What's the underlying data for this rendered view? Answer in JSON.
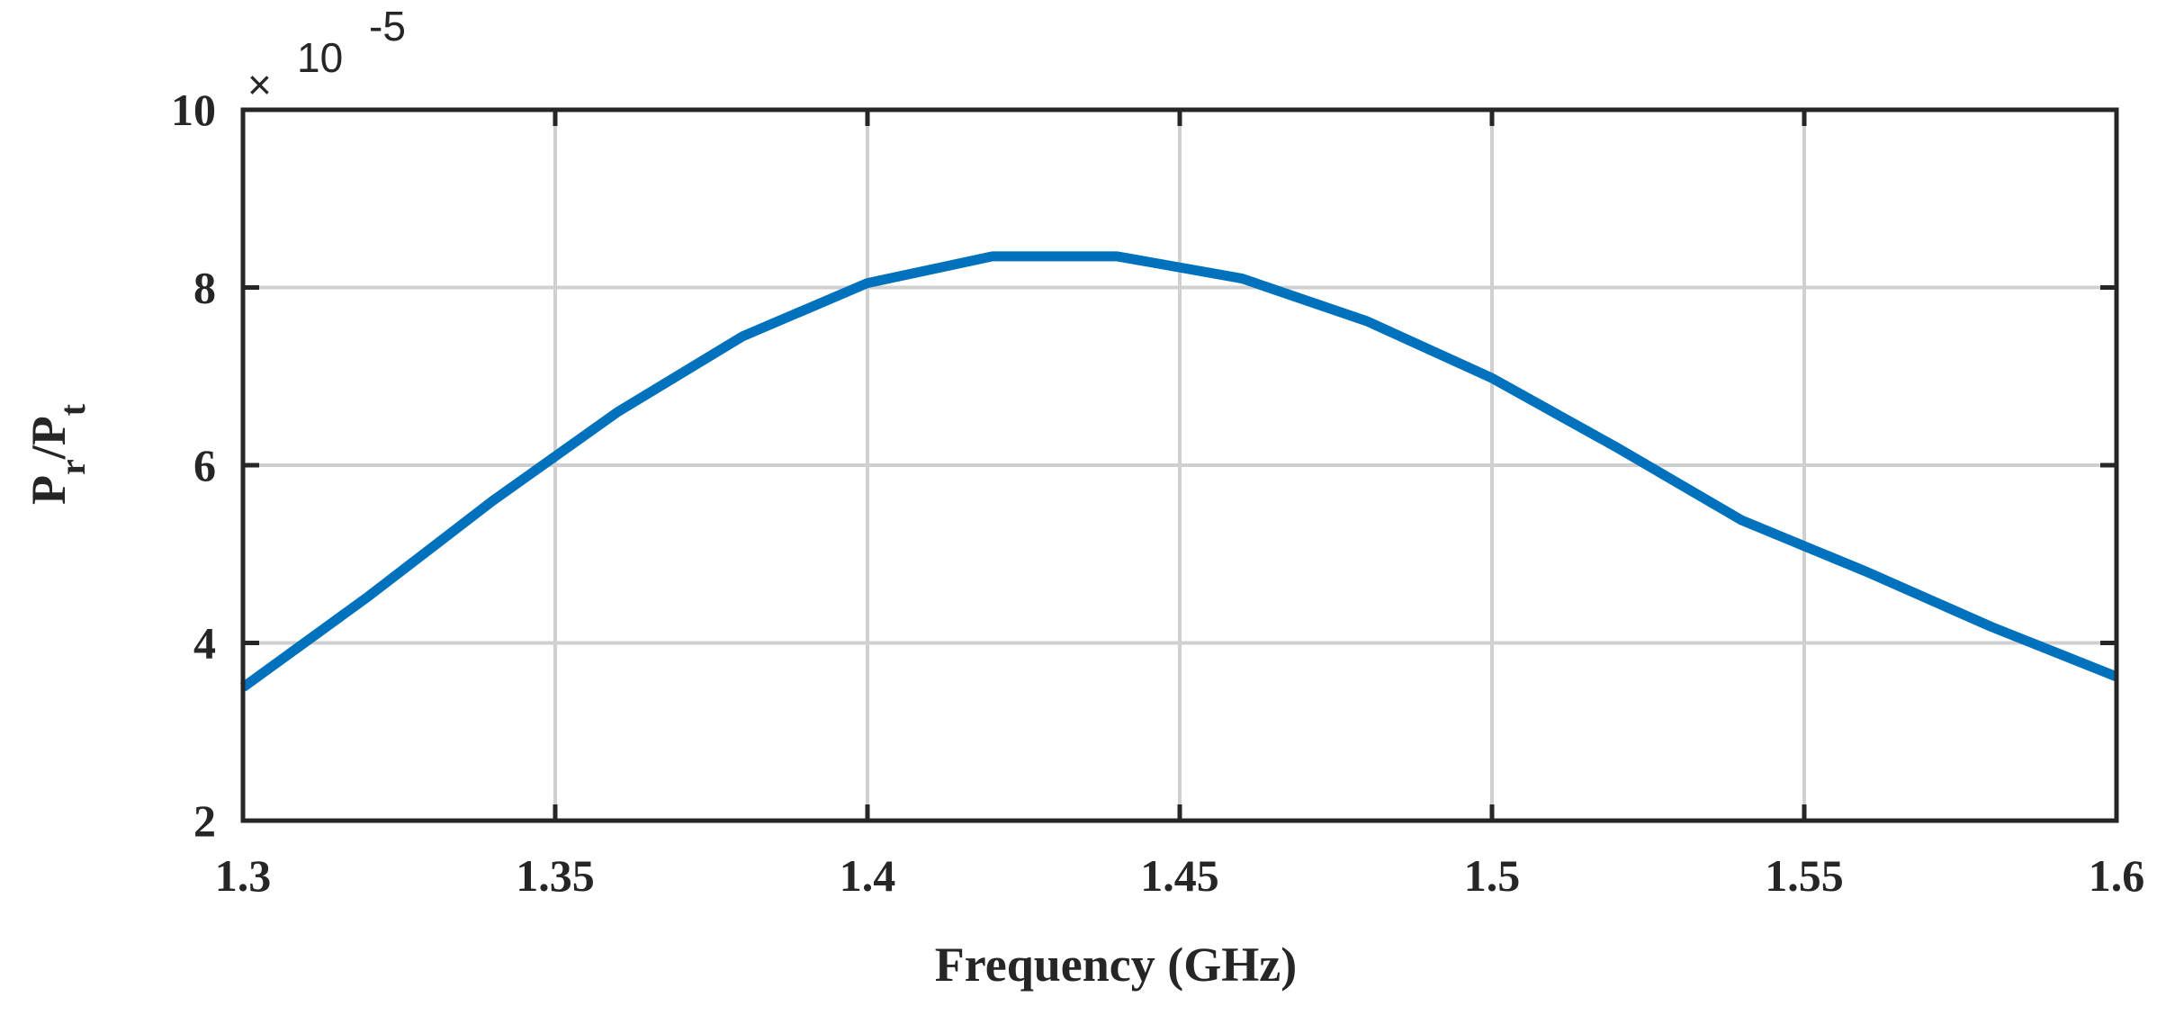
{
  "chart_data": {
    "type": "line",
    "title": "",
    "xlabel": "Frequency (GHz)",
    "ylabel": {
      "main": "P",
      "sub_r": "r",
      "slash": "/P",
      "sub_t": "t"
    },
    "y_exponent_label": {
      "times": "×",
      "base": "10",
      "power": "-5"
    },
    "xlim": [
      1.3,
      1.6
    ],
    "ylim": [
      2,
      10
    ],
    "x_ticks": [
      1.3,
      1.35,
      1.4,
      1.45,
      1.5,
      1.55,
      1.6
    ],
    "x_tick_labels": [
      "1.3",
      "1.35",
      "1.4",
      "1.45",
      "1.5",
      "1.55",
      "1.6"
    ],
    "y_ticks": [
      2,
      4,
      6,
      8,
      10
    ],
    "y_tick_labels": [
      "2",
      "4",
      "6",
      "8",
      "10"
    ],
    "grid": true,
    "series": [
      {
        "color": "#0072BD",
        "x": [
          1.3,
          1.32,
          1.34,
          1.36,
          1.38,
          1.4,
          1.42,
          1.44,
          1.46,
          1.48,
          1.5,
          1.52,
          1.54,
          1.56,
          1.58,
          1.6
        ],
        "y": [
          3.5,
          4.52,
          5.6,
          6.6,
          7.45,
          8.05,
          8.35,
          8.35,
          8.1,
          7.62,
          6.98,
          6.2,
          5.38,
          4.8,
          4.18,
          3.62
        ]
      }
    ]
  }
}
